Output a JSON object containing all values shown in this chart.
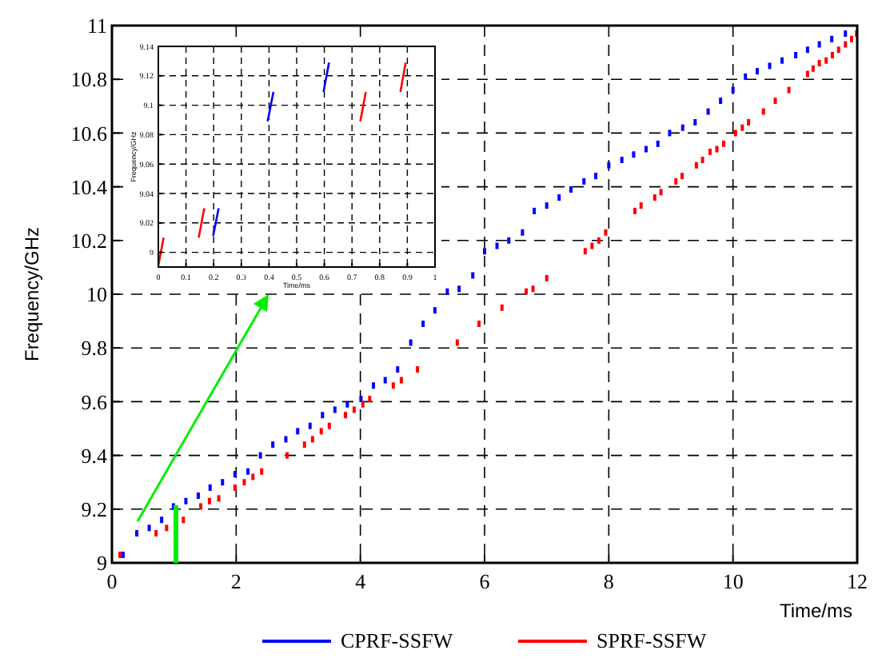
{
  "chart_data": [
    {
      "type": "scatter",
      "xlabel": "Time/ms",
      "ylabel": "Frequency/GHz",
      "xlim": [
        0,
        12
      ],
      "xticks": [
        0,
        2,
        4,
        6,
        8,
        10,
        12
      ],
      "ylim": [
        9,
        11
      ],
      "yticks": [
        9,
        9.2,
        9.4,
        9.6,
        9.8,
        10,
        10.2,
        10.4,
        10.6,
        10.8,
        11
      ],
      "grid": true,
      "legend": "bottom",
      "marker": "square",
      "series": [
        {
          "name": "CPRF-SSFW",
          "color": "#0000ff",
          "x": [
            0.18,
            0.4,
            0.6,
            0.8,
            0.99,
            1.19,
            1.39,
            1.58,
            1.78,
            1.98,
            2.19,
            2.39,
            2.59,
            2.8,
            2.99,
            3.19,
            3.39,
            3.59,
            3.79,
            4.01,
            4.21,
            4.4,
            4.6,
            4.81,
            5.01,
            5.2,
            5.4,
            5.59,
            5.81,
            6.0,
            6.2,
            6.39,
            6.61,
            6.8,
            7.0,
            7.2,
            7.39,
            7.6,
            7.79,
            8.0,
            8.21,
            8.4,
            8.6,
            8.79,
            8.98,
            9.19,
            9.39,
            9.6,
            9.8,
            10.0,
            10.2,
            10.39,
            10.59,
            10.79,
            11.01,
            11.2,
            11.39,
            11.59,
            11.81
          ],
          "values": [
            9.03,
            9.11,
            9.13,
            9.16,
            9.21,
            9.23,
            9.25,
            9.28,
            9.3,
            9.33,
            9.34,
            9.4,
            9.44,
            9.46,
            9.49,
            9.51,
            9.55,
            9.57,
            9.59,
            9.61,
            9.66,
            9.68,
            9.72,
            9.82,
            9.89,
            9.94,
            10.01,
            10.02,
            10.07,
            10.16,
            10.18,
            10.2,
            10.23,
            10.31,
            10.33,
            10.36,
            10.39,
            10.42,
            10.44,
            10.48,
            10.5,
            10.52,
            10.54,
            10.56,
            10.6,
            10.62,
            10.64,
            10.68,
            10.72,
            10.76,
            10.81,
            10.83,
            10.85,
            10.87,
            10.89,
            10.91,
            10.93,
            10.95,
            10.97
          ]
        },
        {
          "name": "SPRF-SSFW",
          "color": "#ff0000",
          "x": [
            0.13,
            0.71,
            0.88,
            1.15,
            1.43,
            1.57,
            1.72,
            1.98,
            2.13,
            2.27,
            2.41,
            2.82,
            3.1,
            3.23,
            3.37,
            3.5,
            3.76,
            3.9,
            4.04,
            4.15,
            4.53,
            4.66,
            4.92,
            5.56,
            5.91,
            6.28,
            6.67,
            6.78,
            7.0,
            7.62,
            7.73,
            7.84,
            7.95,
            8.42,
            8.52,
            8.74,
            8.84,
            9.08,
            9.18,
            9.41,
            9.51,
            9.63,
            9.74,
            9.85,
            10.04,
            10.15,
            10.25,
            10.49,
            10.68,
            10.9,
            11.2,
            11.29,
            11.39,
            11.5,
            11.6,
            11.7,
            11.81,
            11.91,
            11.99
          ],
          "values": [
            9.03,
            9.11,
            9.13,
            9.16,
            9.21,
            9.23,
            9.24,
            9.28,
            9.3,
            9.32,
            9.34,
            9.4,
            9.44,
            9.46,
            9.49,
            9.51,
            9.55,
            9.57,
            9.59,
            9.61,
            9.66,
            9.68,
            9.72,
            9.82,
            9.89,
            9.95,
            10.01,
            10.02,
            10.06,
            10.16,
            10.18,
            10.2,
            10.23,
            10.31,
            10.33,
            10.36,
            10.38,
            10.42,
            10.44,
            10.48,
            10.5,
            10.53,
            10.54,
            10.56,
            10.6,
            10.62,
            10.64,
            10.68,
            10.72,
            10.76,
            10.82,
            10.84,
            10.86,
            10.87,
            10.89,
            10.91,
            10.93,
            10.95,
            10.97
          ]
        }
      ]
    },
    {
      "type": "line",
      "xlabel": "Time/ms",
      "ylabel": "Frequency/GHz",
      "xlim": [
        0,
        1
      ],
      "xticks": [
        0,
        0.1,
        0.2,
        0.3,
        0.4,
        0.5,
        0.6,
        0.7,
        0.8,
        0.9,
        1
      ],
      "ylim": [
        8.99,
        9.14
      ],
      "yticks": [
        9,
        9.02,
        9.04,
        9.06,
        9.08,
        9.1,
        9.12,
        9.14
      ],
      "grid": true,
      "series": [
        {
          "color": "#ff0000",
          "x": [
            0,
            0.019
          ],
          "values": [
            8.991,
            9.01
          ]
        },
        {
          "color": "#ff0000",
          "x": [
            0.146,
            0.166
          ],
          "values": [
            9.01,
            9.03
          ]
        },
        {
          "color": "#0000ff",
          "x": [
            0.198,
            0.218
          ],
          "values": [
            9.011,
            9.03
          ]
        },
        {
          "color": "#0000ff",
          "x": [
            0.395,
            0.416
          ],
          "values": [
            9.089,
            9.109
          ]
        },
        {
          "color": "#0000ff",
          "x": [
            0.597,
            0.617
          ],
          "values": [
            9.109,
            9.129
          ]
        },
        {
          "color": "#ff0000",
          "x": [
            0.73,
            0.75
          ],
          "values": [
            9.089,
            9.109
          ]
        },
        {
          "color": "#ff0000",
          "x": [
            0.875,
            0.894
          ],
          "values": [
            9.109,
            9.129
          ]
        }
      ]
    }
  ]
}
